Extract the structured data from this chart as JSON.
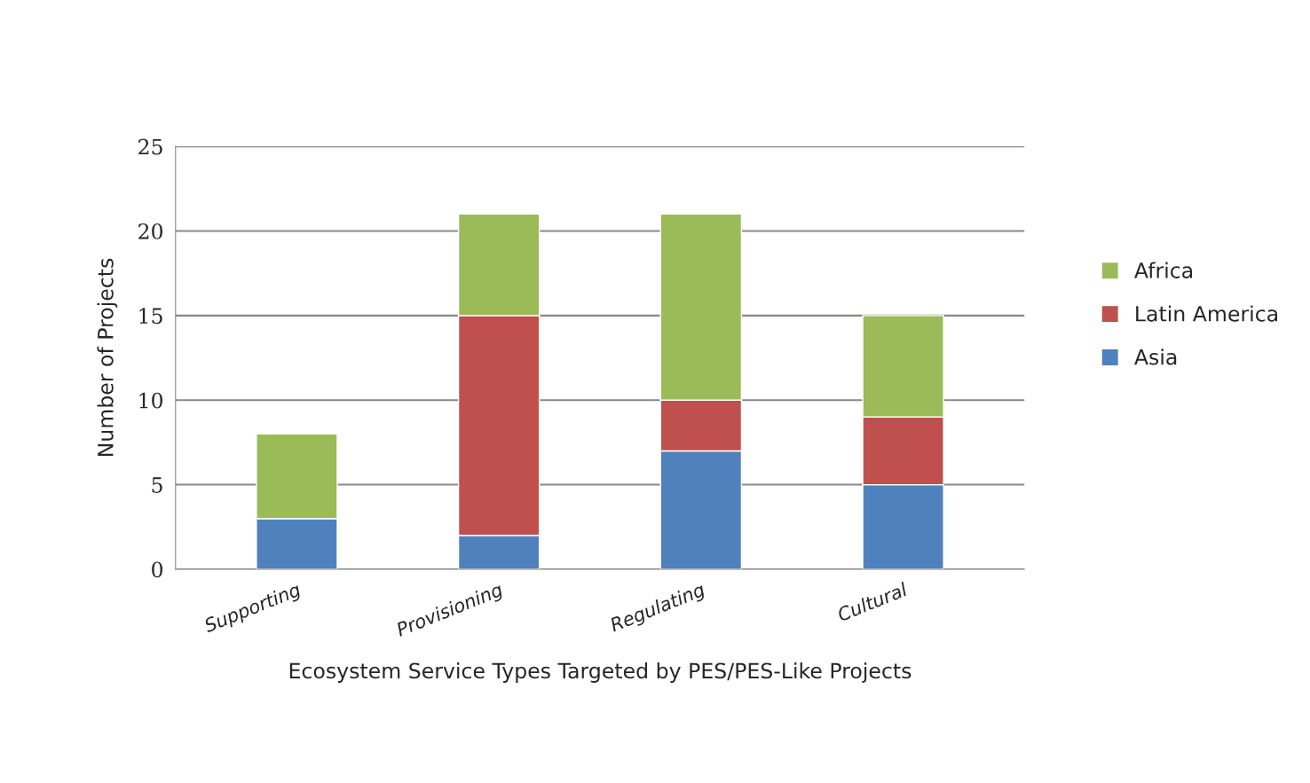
{
  "chart_data": {
    "type": "bar",
    "stacked": true,
    "xlabel": "Ecosystem Service Types Targeted by PES/PES-Like Projects",
    "ylabel": "Number of Projects",
    "categories": [
      "Supporting",
      "Provisioning",
      "Regulating",
      "Cultural"
    ],
    "series": [
      {
        "name": "Asia",
        "color": "#4f81bd",
        "values": [
          3,
          2,
          7,
          5
        ]
      },
      {
        "name": "Latin America",
        "color": "#c0504d",
        "values": [
          0,
          13,
          3,
          4
        ]
      },
      {
        "name": "Africa",
        "color": "#9bbb59",
        "values": [
          5,
          6,
          11,
          6
        ]
      }
    ],
    "ylim": [
      0,
      25
    ],
    "yticks": [
      0,
      5,
      10,
      15,
      20,
      25
    ],
    "grid": "y",
    "legend": "right"
  }
}
